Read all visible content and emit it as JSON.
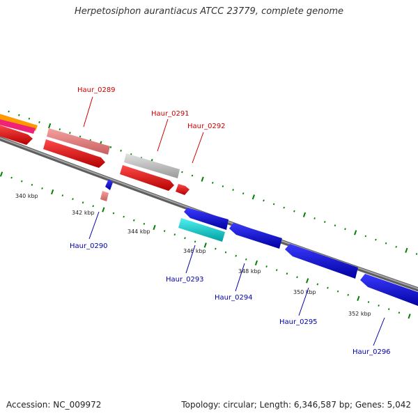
{
  "title": "Herpetosiphon aurantiacus ATCC 23779, complete genome",
  "accession_text": "Accession: NC_009972",
  "summary_text": "Topology: circular; Length: 6,346,587 bp; Genes: 5,042",
  "colors": {
    "forward_cds": "#ff0000",
    "forward_pseudo": "#f08080",
    "forward_rna": "#c8c8c8",
    "reverse_cds": "#0000ff",
    "reverse_rna": "#00cccc",
    "backbone": "#888888",
    "tick": "#008000",
    "forward_label": "#cc0000",
    "reverse_label": "#0000aa"
  },
  "scale_labels": [
    "340 kbp",
    "342 kbp",
    "344 kbp",
    "346 kbp",
    "348 kbp",
    "350 kbp",
    "352 kbp"
  ],
  "genes": [
    {
      "name": "Haur_0289",
      "strand": "forward"
    },
    {
      "name": "Haur_0290",
      "strand": "reverse"
    },
    {
      "name": "Haur_0291",
      "strand": "forward"
    },
    {
      "name": "Haur_0292",
      "strand": "forward"
    },
    {
      "name": "Haur_0293",
      "strand": "reverse"
    },
    {
      "name": "Haur_0294",
      "strand": "reverse"
    },
    {
      "name": "Haur_0295",
      "strand": "reverse"
    },
    {
      "name": "Haur_0296",
      "strand": "reverse"
    }
  ]
}
